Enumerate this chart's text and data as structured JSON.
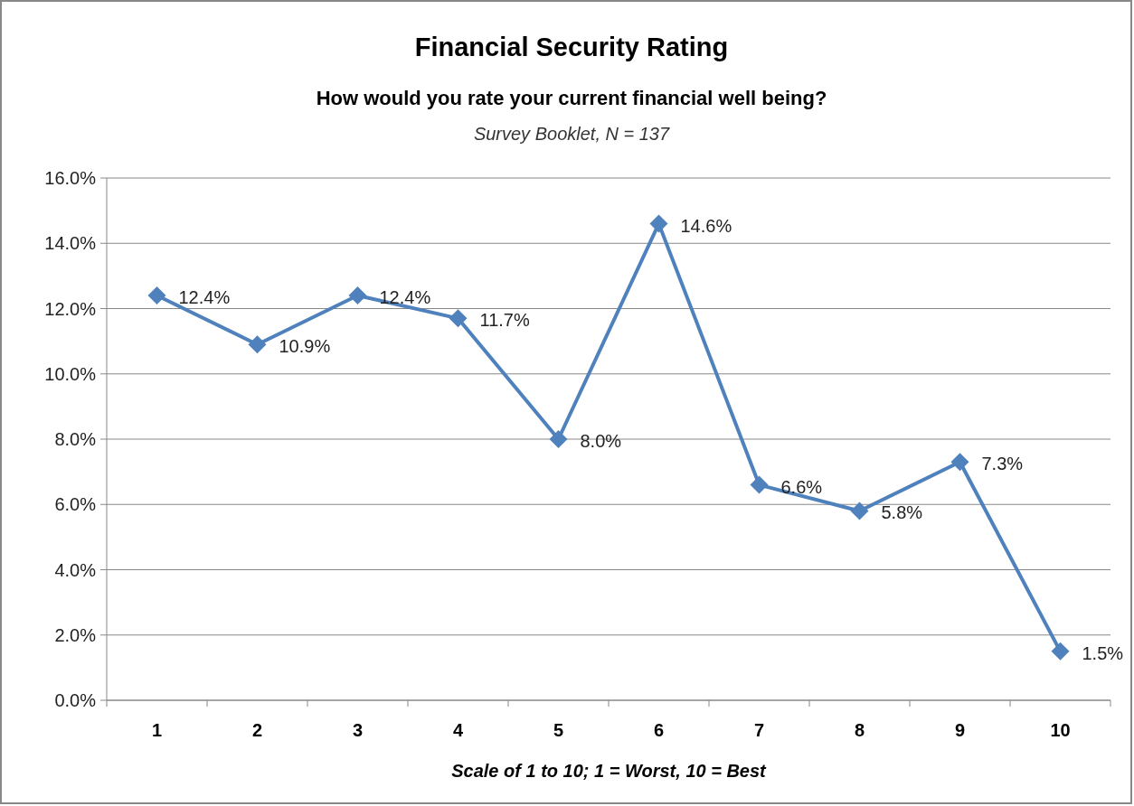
{
  "chart_data": {
    "type": "line",
    "title": "Financial Security Rating",
    "subtitle": "How would you rate your current financial well being?",
    "annotations": [
      "Survey Booklet, N = 137"
    ],
    "xlabel": "Scale of 1 to 10; 1 = Worst, 10 = Best",
    "categories": [
      "1",
      "2",
      "3",
      "4",
      "5",
      "6",
      "7",
      "8",
      "9",
      "10"
    ],
    "series": [
      {
        "color": "#4f81bd",
        "values": [
          12.4,
          10.9,
          12.4,
          11.7,
          8.0,
          14.6,
          6.6,
          5.8,
          7.3,
          1.5
        ],
        "value_labels": [
          "12.4%",
          "10.9%",
          "12.4%",
          "11.7%",
          "8.0%",
          "14.6%",
          "6.6%",
          "5.8%",
          "7.3%",
          "1.5%"
        ]
      }
    ],
    "ylim": [
      0,
      16
    ],
    "yticks": [
      {
        "value": 0,
        "label": "0.0%"
      },
      {
        "value": 2,
        "label": "2.0%"
      },
      {
        "value": 4,
        "label": "4.0%"
      },
      {
        "value": 6,
        "label": "6.0%"
      },
      {
        "value": 8,
        "label": "8.0%"
      },
      {
        "value": 10,
        "label": "10.0%"
      },
      {
        "value": 12,
        "label": "12.0%"
      },
      {
        "value": 14,
        "label": "14.0%"
      },
      {
        "value": 16,
        "label": "16.0%"
      }
    ],
    "grid": "y",
    "marker": "diamond",
    "line_style": "solid"
  }
}
